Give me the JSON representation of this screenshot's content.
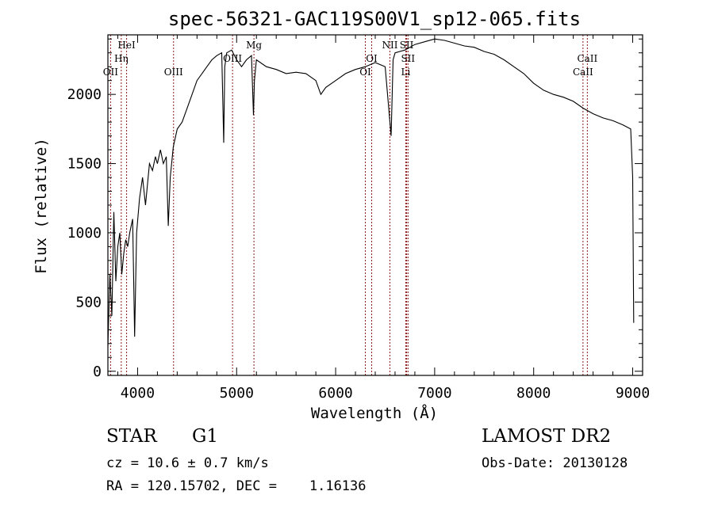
{
  "chart_data": {
    "type": "line",
    "title": "spec-56321-GAC119S00V1_sp12-065.fits",
    "xlabel": "Wavelength (Å)",
    "ylabel": "Flux (relative)",
    "xlim": [
      3700,
      9100
    ],
    "ylim": [
      -30,
      2430
    ],
    "x_ticks": [
      4000,
      5000,
      6000,
      7000,
      8000,
      9000
    ],
    "y_ticks": [
      0,
      500,
      1000,
      1500,
      2000
    ],
    "grid": false,
    "series": [
      {
        "points": [
          [
            3700,
            180
          ],
          [
            3720,
            700
          ],
          [
            3740,
            400
          ],
          [
            3760,
            1150
          ],
          [
            3780,
            650
          ],
          [
            3800,
            900
          ],
          [
            3820,
            1000
          ],
          [
            3840,
            700
          ],
          [
            3860,
            850
          ],
          [
            3880,
            950
          ],
          [
            3900,
            900
          ],
          [
            3920,
            1000
          ],
          [
            3950,
            1100
          ],
          [
            3970,
            250
          ],
          [
            3990,
            1000
          ],
          [
            4020,
            1250
          ],
          [
            4050,
            1400
          ],
          [
            4080,
            1200
          ],
          [
            4100,
            1350
          ],
          [
            4120,
            1500
          ],
          [
            4150,
            1450
          ],
          [
            4180,
            1550
          ],
          [
            4200,
            1500
          ],
          [
            4230,
            1600
          ],
          [
            4260,
            1500
          ],
          [
            4290,
            1550
          ],
          [
            4310,
            1050
          ],
          [
            4330,
            1400
          ],
          [
            4360,
            1620
          ],
          [
            4400,
            1750
          ],
          [
            4450,
            1800
          ],
          [
            4500,
            1900
          ],
          [
            4550,
            2000
          ],
          [
            4600,
            2100
          ],
          [
            4650,
            2150
          ],
          [
            4700,
            2200
          ],
          [
            4750,
            2250
          ],
          [
            4800,
            2280
          ],
          [
            4850,
            2300
          ],
          [
            4870,
            1650
          ],
          [
            4880,
            2200
          ],
          [
            4900,
            2300
          ],
          [
            4950,
            2320
          ],
          [
            5000,
            2250
          ],
          [
            5050,
            2200
          ],
          [
            5100,
            2250
          ],
          [
            5150,
            2280
          ],
          [
            5170,
            1850
          ],
          [
            5180,
            2100
          ],
          [
            5200,
            2250
          ],
          [
            5300,
            2200
          ],
          [
            5400,
            2180
          ],
          [
            5500,
            2150
          ],
          [
            5600,
            2160
          ],
          [
            5700,
            2150
          ],
          [
            5800,
            2100
          ],
          [
            5850,
            2000
          ],
          [
            5900,
            2050
          ],
          [
            6000,
            2100
          ],
          [
            6100,
            2150
          ],
          [
            6200,
            2180
          ],
          [
            6300,
            2200
          ],
          [
            6400,
            2230
          ],
          [
            6500,
            2200
          ],
          [
            6560,
            1700
          ],
          [
            6580,
            2250
          ],
          [
            6600,
            2300
          ],
          [
            6700,
            2320
          ],
          [
            6800,
            2360
          ],
          [
            6900,
            2380
          ],
          [
            7000,
            2400
          ],
          [
            7100,
            2390
          ],
          [
            7200,
            2370
          ],
          [
            7300,
            2350
          ],
          [
            7400,
            2340
          ],
          [
            7500,
            2310
          ],
          [
            7600,
            2290
          ],
          [
            7700,
            2250
          ],
          [
            7800,
            2200
          ],
          [
            7900,
            2150
          ],
          [
            8000,
            2080
          ],
          [
            8100,
            2030
          ],
          [
            8200,
            2000
          ],
          [
            8300,
            1980
          ],
          [
            8400,
            1950
          ],
          [
            8500,
            1900
          ],
          [
            8600,
            1860
          ],
          [
            8700,
            1830
          ],
          [
            8800,
            1810
          ],
          [
            8900,
            1780
          ],
          [
            8980,
            1750
          ],
          [
            9000,
            1400
          ],
          [
            9010,
            350
          ]
        ]
      }
    ],
    "spectral_lines": [
      {
        "label": "OII",
        "wavelength": 3727,
        "label_row": 3
      },
      {
        "label": "Hη",
        "wavelength": 3835,
        "label_row": 2
      },
      {
        "label": "HeI",
        "wavelength": 3889,
        "label_row": 1
      },
      {
        "label": "OIII",
        "wavelength": 4363,
        "label_row": 3
      },
      {
        "label": "OIII",
        "wavelength": 4959,
        "label_row": 2
      },
      {
        "label": "Mg",
        "wavelength": 5175,
        "label_row": 1
      },
      {
        "label": "OI",
        "wavelength": 6300,
        "label_row": 3
      },
      {
        "label": "OI",
        "wavelength": 6364,
        "label_row": 2
      },
      {
        "label": "NII",
        "wavelength": 6548,
        "label_row": 1
      },
      {
        "label": "SII",
        "wavelength": 6717,
        "label_row": 1
      },
      {
        "label": "Li",
        "wavelength": 6708,
        "label_row": 3
      },
      {
        "label": "SII",
        "wavelength": 6731,
        "label_row": 2
      },
      {
        "label": "CaII",
        "wavelength": 8498,
        "label_row": 3
      },
      {
        "label": "CaII",
        "wavelength": 8542,
        "label_row": 2
      }
    ]
  },
  "info": {
    "object_class": "STAR",
    "subclass": "G1",
    "survey": "LAMOST DR2",
    "cz": "cz = 10.6 ± 0.7 km/s",
    "obs_date": "Obs-Date: 20130128",
    "coords": "RA = 120.15702, DEC =    1.16136"
  },
  "colors": {
    "spectrum": "#000000",
    "line_marker": "#8b1a1a",
    "axes": "#000000"
  }
}
